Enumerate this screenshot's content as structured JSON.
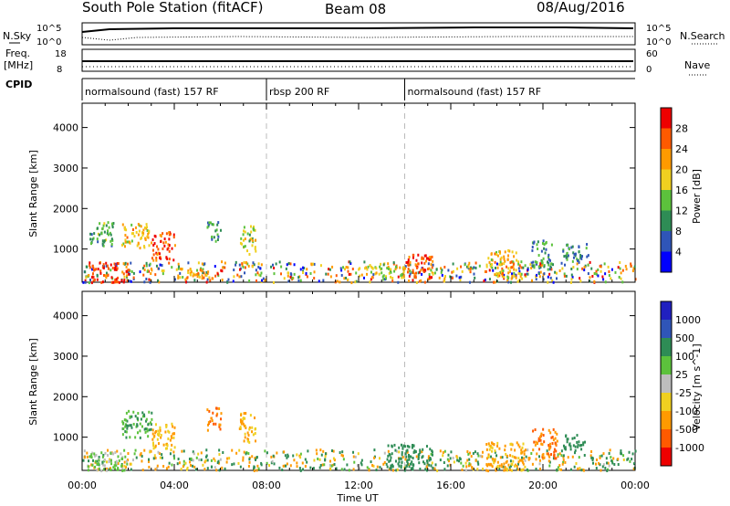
{
  "header": {
    "station": "South Pole Station (fitACF)",
    "beam": "Beam 08",
    "date": "08/Aug/2016"
  },
  "labels": {
    "nsky": "N.Sky",
    "nsearch": "N.Search",
    "freq_line1": "Freq.",
    "freq_line2": "[MHz]",
    "nave": "Nave",
    "cpid": "CPID",
    "noise_top_left": "10^5",
    "noise_bottom_left": "10^0",
    "noise_top_right": "10^5",
    "noise_bottom_right": "10^0",
    "freq_top": "18",
    "freq_bottom": "8",
    "nave_top": "60",
    "nave_bottom": "0"
  },
  "cpid_segments": [
    {
      "label": "normalsound (fast) 157 RF",
      "start_h": 0,
      "end_h": 8
    },
    {
      "label": "rbsp 200 RF",
      "start_h": 8,
      "end_h": 14
    },
    {
      "label": "normalsound (fast) 157 RF",
      "start_h": 14,
      "end_h": 24
    }
  ],
  "colors": {
    "power": [
      "#0000ff",
      "#2f55b8",
      "#2e8c55",
      "#5cc23c",
      "#f0d020",
      "#ff9a00",
      "#ff5a00",
      "#ee0000"
    ],
    "velocity": [
      "#ee0000",
      "#ff5a00",
      "#ff9a00",
      "#f0d020",
      "#bdbdbd",
      "#5cc23c",
      "#2e8c55",
      "#2f55b8",
      "#2020c0"
    ]
  },
  "chart_data": [
    {
      "type": "heatmap",
      "title": "",
      "xlabel": "",
      "ylabel": "Slant Range [km]",
      "colorbar_label": "Power [dB]",
      "colorbar_ticks": [
        "4",
        "8",
        "12",
        "16",
        "20",
        "24",
        "28"
      ],
      "x_ticks": [
        "00:00",
        "04:00",
        "08:00",
        "12:00",
        "16:00",
        "20:00",
        "00:00"
      ],
      "y_ticks": [
        "1000",
        "2000",
        "3000",
        "4000"
      ],
      "xlim_hours": [
        0,
        24
      ],
      "ylim_km": [
        180,
        4600
      ],
      "patches": [
        {
          "t0": 0.2,
          "t1": 2.0,
          "r0": 200,
          "r1": 700,
          "value": 28
        },
        {
          "t0": 0.3,
          "t1": 1.4,
          "r0": 1100,
          "r1": 1700,
          "value": 12
        },
        {
          "t0": 1.7,
          "t1": 3.0,
          "r0": 1050,
          "r1": 1650,
          "value": 20
        },
        {
          "t0": 3.0,
          "t1": 4.0,
          "r0": 750,
          "r1": 1450,
          "value": 26
        },
        {
          "t0": 4.0,
          "t1": 5.5,
          "r0": 300,
          "r1": 550,
          "value": 22
        },
        {
          "t0": 5.4,
          "t1": 6.0,
          "r0": 1200,
          "r1": 1700,
          "value": 10
        },
        {
          "t0": 6.8,
          "t1": 7.5,
          "r0": 900,
          "r1": 1600,
          "value": 16
        },
        {
          "t0": 14.0,
          "t1": 15.2,
          "r0": 200,
          "r1": 900,
          "value": 27
        },
        {
          "t0": 12.0,
          "t1": 14.0,
          "r0": 300,
          "r1": 600,
          "value": 18
        },
        {
          "t0": 17.5,
          "t1": 19.0,
          "r0": 300,
          "r1": 1000,
          "value": 20
        },
        {
          "t0": 19.5,
          "t1": 20.4,
          "r0": 500,
          "r1": 1250,
          "value": 11
        },
        {
          "t0": 20.8,
          "t1": 22.0,
          "r0": 700,
          "r1": 1150,
          "value": 9
        }
      ]
    },
    {
      "type": "heatmap",
      "title": "",
      "xlabel": "Time UT",
      "ylabel": "Slant Range [km]",
      "colorbar_label": "Velocity [m s^-1]",
      "colorbar_ticks": [
        "-1000",
        "-500",
        "-100",
        "-25",
        "25",
        "100",
        "500",
        "1000"
      ],
      "x_ticks": [
        "00:00",
        "04:00",
        "08:00",
        "12:00",
        "16:00",
        "20:00",
        "00:00"
      ],
      "y_ticks": [
        "1000",
        "2000",
        "3000",
        "4000"
      ],
      "xlim_hours": [
        0,
        24
      ],
      "ylim_km": [
        180,
        4600
      ],
      "patches": [
        {
          "t0": 0.2,
          "t1": 2.0,
          "r0": 200,
          "r1": 650,
          "value": 25
        },
        {
          "t0": 1.7,
          "t1": 3.0,
          "r0": 1000,
          "r1": 1700,
          "value": 100
        },
        {
          "t0": 3.0,
          "t1": 4.0,
          "r0": 700,
          "r1": 1400,
          "value": -100
        },
        {
          "t0": 5.4,
          "t1": 6.0,
          "r0": 1200,
          "r1": 1750,
          "value": -500
        },
        {
          "t0": 6.8,
          "t1": 7.5,
          "r0": 900,
          "r1": 1650,
          "value": -100
        },
        {
          "t0": 13.2,
          "t1": 15.2,
          "r0": 200,
          "r1": 850,
          "value": 300
        },
        {
          "t0": 17.5,
          "t1": 19.2,
          "r0": 200,
          "r1": 900,
          "value": -120
        },
        {
          "t0": 19.5,
          "t1": 20.6,
          "r0": 500,
          "r1": 1250,
          "value": -500
        },
        {
          "t0": 20.8,
          "t1": 21.8,
          "r0": 700,
          "r1": 1100,
          "value": 200
        }
      ]
    }
  ]
}
